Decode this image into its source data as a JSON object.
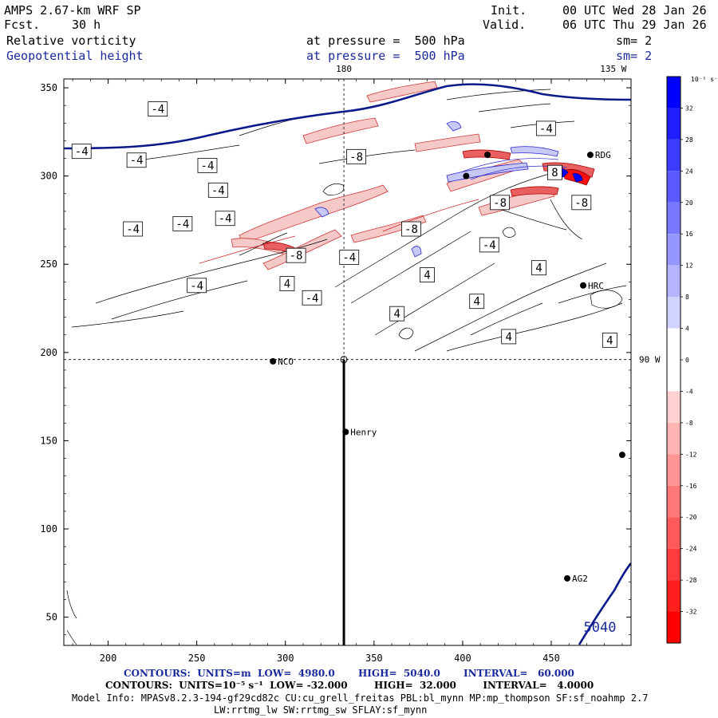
{
  "header": {
    "model": "AMPS 2.67-km WRF SP",
    "fcst_label": "Fcst.",
    "fcst_value": "30 h",
    "init_label": "Init.",
    "init_value": "00 UTC Wed 28 Jan 26",
    "valid_label": "Valid.",
    "valid_value": "06 UTC Thu 29 Jan 26",
    "field1": "Relative vorticity",
    "field2": "Geopotential height",
    "pressure1": "at pressure =  500 hPa",
    "pressure2": "at pressure =  500 hPa",
    "sm1": "sm= 2",
    "sm2": "sm= 2"
  },
  "colorbar": {
    "unit_label": "10⁻⁵ s⁻¹",
    "levels": [
      32,
      28,
      24,
      20,
      16,
      12,
      8,
      4,
      0,
      -4,
      -8,
      -12,
      -16,
      -20,
      -24,
      -28,
      -32
    ],
    "colors": {
      "max_blue": "#0000ff",
      "max_red": "#ff0000",
      "neutral": "#ffffff"
    }
  },
  "chart_data": {
    "type": "contour map",
    "xlabel": "",
    "ylabel": "",
    "xlim": [
      175,
      495
    ],
    "ylim": [
      34,
      355
    ],
    "x_ticks": [
      200,
      250,
      300,
      350,
      400,
      450
    ],
    "y_ticks": [
      50,
      100,
      150,
      200,
      250,
      300,
      350
    ],
    "meridian_labels": [
      {
        "label": "180",
        "x": 333
      },
      {
        "label": "135 W",
        "x": 485
      },
      {
        "label": "90 W",
        "y": 196
      }
    ],
    "reference_lines": {
      "vertical_x": 333,
      "horizontal_y": 196
    },
    "cross_section_line": {
      "x": 333,
      "y_from": 34,
      "y_to": 196
    },
    "stations": [
      {
        "name": "NCO",
        "x": 293,
        "y": 195
      },
      {
        "name": "Henry",
        "x": 334,
        "y": 155
      },
      {
        "name": "HRC",
        "x": 468,
        "y": 238
      },
      {
        "name": "AG2",
        "x": 459,
        "y": 72
      },
      {
        "name": "RDG",
        "x": 472,
        "y": 312
      },
      {
        "name": "",
        "x": 490,
        "y": 142
      },
      {
        "name": "",
        "x": 402,
        "y": 300
      },
      {
        "name": "",
        "x": 414,
        "y": 312
      }
    ],
    "geopotential_height": {
      "units": "m",
      "low": 4980.0,
      "high": 5040.0,
      "interval": 60.0,
      "contour_labels": [
        "5040"
      ]
    },
    "vorticity": {
      "units": "10⁻⁵ s⁻¹",
      "low": -32.0,
      "high": 32.0,
      "interval": 4.0,
      "contour_labels": [
        {
          "label": "-4",
          "x": 228,
          "y": 338
        },
        {
          "label": "-4",
          "x": 185,
          "y": 314
        },
        {
          "label": "-4",
          "x": 216,
          "y": 309
        },
        {
          "label": "-4",
          "x": 256,
          "y": 306
        },
        {
          "label": "-4",
          "x": 262,
          "y": 292
        },
        {
          "label": "-4",
          "x": 242,
          "y": 273
        },
        {
          "label": "-4",
          "x": 266,
          "y": 276
        },
        {
          "label": "-4",
          "x": 214,
          "y": 270
        },
        {
          "label": "-8",
          "x": 306,
          "y": 255
        },
        {
          "label": "-4",
          "x": 250,
          "y": 238
        },
        {
          "label": "4",
          "x": 301,
          "y": 239
        },
        {
          "label": "-4",
          "x": 315,
          "y": 231
        },
        {
          "label": "-4",
          "x": 336,
          "y": 254
        },
        {
          "label": "-8",
          "x": 340,
          "y": 311
        },
        {
          "label": "-8",
          "x": 371,
          "y": 270
        },
        {
          "label": "4",
          "x": 380,
          "y": 244
        },
        {
          "label": "4",
          "x": 363,
          "y": 222
        },
        {
          "label": "4",
          "x": 408,
          "y": 229
        },
        {
          "label": "4",
          "x": 443,
          "y": 248
        },
        {
          "label": "-4",
          "x": 415,
          "y": 261
        },
        {
          "label": "-8",
          "x": 421,
          "y": 285
        },
        {
          "label": "4",
          "x": 426,
          "y": 209
        },
        {
          "label": "4",
          "x": 483,
          "y": 207
        },
        {
          "label": "-4",
          "x": 447,
          "y": 327
        },
        {
          "label": "-8",
          "x": 467,
          "y": 285
        },
        {
          "label": "8",
          "x": 452,
          "y": 302
        }
      ]
    }
  },
  "footer": {
    "line1": "CONTOURS:  UNITS=m  LOW=  4980.0       HIGH=  5040.0       INTERVAL=   60.000",
    "line2": "CONTOURS:  UNITS=10⁻⁵ s⁻¹  LOW= -32.000        HIGH=  32.000        INTERVAL=   4.0000",
    "line3": "Model Info: MPASv8.2.3-194-gf29cd82c CU:cu_grell_freitas PBL:bl_mynn MP:mp_thompson SF:sf_noahmp 2.7",
    "line4": "LW:rrtmg_lw SW:rrtmg_sw SFLAY:sf_mynn"
  }
}
